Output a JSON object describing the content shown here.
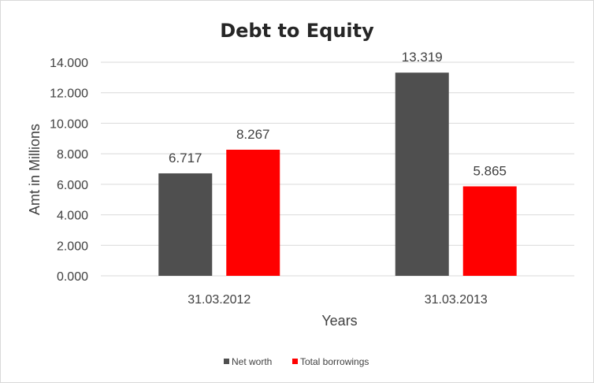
{
  "chart_data": {
    "type": "bar",
    "title": "Debt to Equity",
    "xlabel": "Years",
    "ylabel": "Amt in Millions",
    "categories": [
      "31.03.2012",
      "31.03.2013"
    ],
    "series": [
      {
        "name": "Net worth",
        "values": [
          6.717,
          13.319
        ],
        "labels": [
          "6.717",
          "13.319"
        ],
        "color": "#4f4f4f"
      },
      {
        "name": "Total borrowings",
        "values": [
          8.267,
          5.865
        ],
        "labels": [
          "8.267",
          "5.865"
        ],
        "color": "#ff0000"
      }
    ],
    "ylim": [
      0,
      14
    ],
    "yticks": [
      "0.000",
      "2.000",
      "4.000",
      "6.000",
      "8.000",
      "10.000",
      "12.000",
      "14.000"
    ],
    "grid": true,
    "legend": "bottom"
  }
}
